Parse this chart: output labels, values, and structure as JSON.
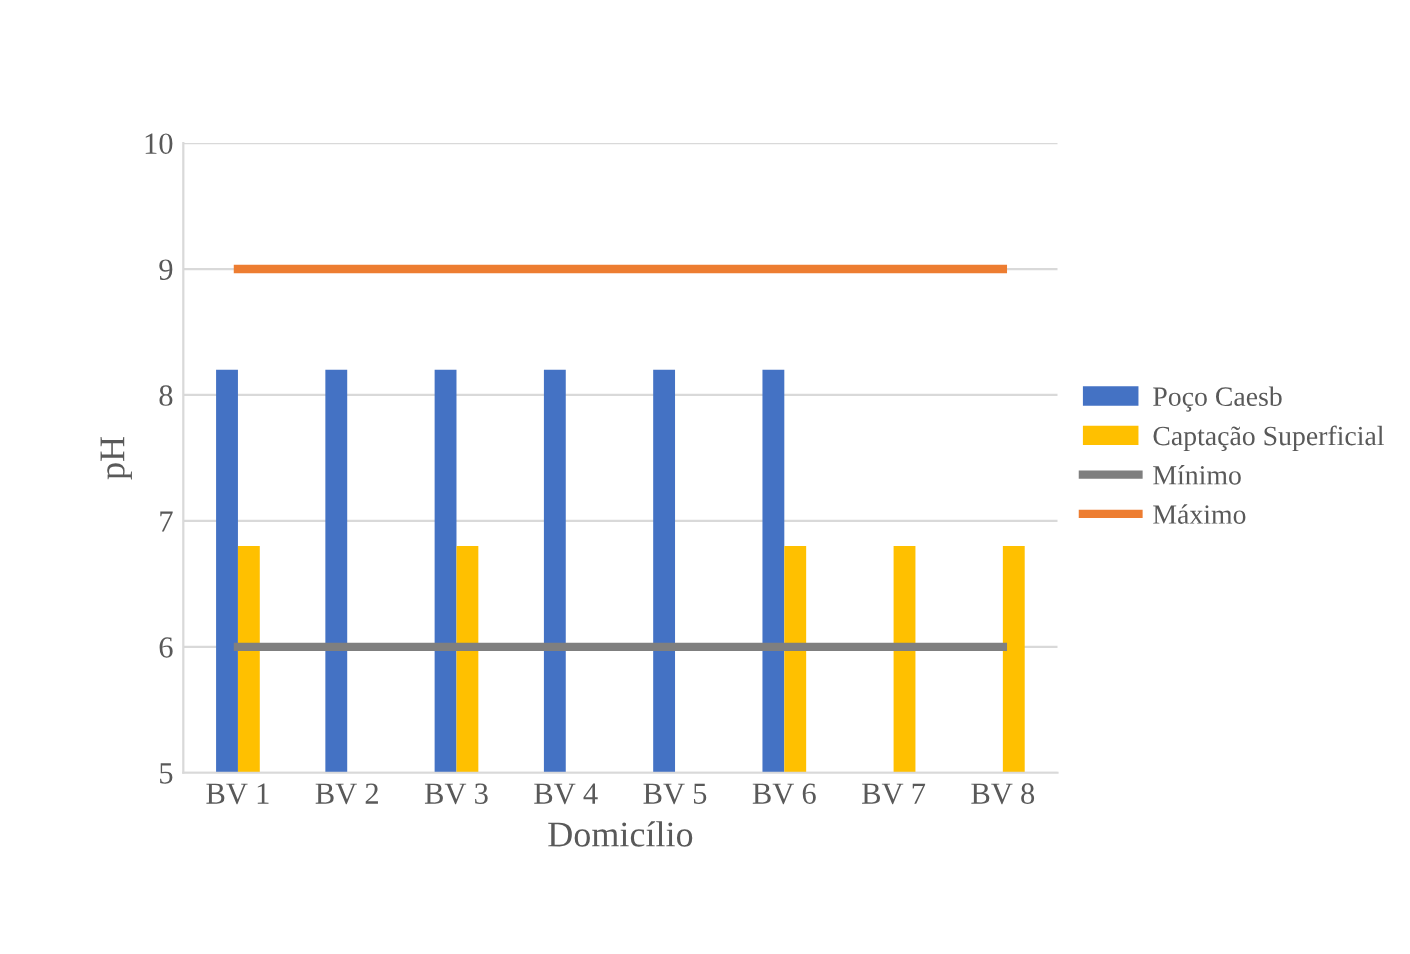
{
  "chart_data": {
    "type": "bar",
    "xlabel": "Domicílio",
    "ylabel": "pH",
    "categories": [
      "BV 1",
      "BV 2",
      "BV 3",
      "BV 4",
      "BV 5",
      "BV 6",
      "BV 7",
      "BV 8"
    ],
    "series": [
      {
        "name": "Poço Caesb",
        "color": "#4472c4",
        "values": [
          8.2,
          8.2,
          8.2,
          8.2,
          8.2,
          8.2,
          null,
          null
        ]
      },
      {
        "name": "Captação Superficial",
        "color": "#ffc000",
        "values": [
          6.8,
          null,
          6.8,
          null,
          null,
          6.8,
          6.8,
          6.8
        ]
      },
      {
        "name": "Mínimo",
        "type": "line",
        "color": "#7f7f7f",
        "values": [
          6,
          6,
          6,
          6,
          6,
          6,
          6,
          6
        ]
      },
      {
        "name": "Máximo",
        "type": "line",
        "color": "#ed7d31",
        "values": [
          9,
          9,
          9,
          9,
          9,
          9,
          9,
          9
        ]
      }
    ],
    "ylim": [
      5,
      10
    ],
    "yticks": [
      5,
      6,
      7,
      8,
      9,
      10
    ],
    "grid": "y",
    "legend": "right",
    "marker": "none",
    "line_style": "solid"
  }
}
